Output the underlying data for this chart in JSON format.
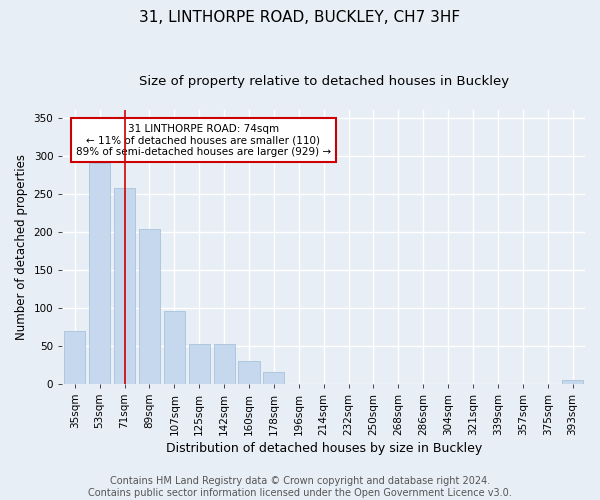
{
  "title1": "31, LINTHORPE ROAD, BUCKLEY, CH7 3HF",
  "title2": "Size of property relative to detached houses in Buckley",
  "xlabel": "Distribution of detached houses by size in Buckley",
  "ylabel": "Number of detached properties",
  "categories": [
    "35sqm",
    "53sqm",
    "71sqm",
    "89sqm",
    "107sqm",
    "125sqm",
    "142sqm",
    "160sqm",
    "178sqm",
    "196sqm",
    "214sqm",
    "232sqm",
    "250sqm",
    "268sqm",
    "286sqm",
    "304sqm",
    "321sqm",
    "339sqm",
    "357sqm",
    "375sqm",
    "393sqm"
  ],
  "values": [
    70,
    290,
    258,
    204,
    96,
    52,
    52,
    30,
    15,
    0,
    0,
    0,
    0,
    0,
    0,
    0,
    0,
    0,
    0,
    0,
    5
  ],
  "bar_color": "#c5d8ed",
  "bar_edge_color": "#a8c4dc",
  "vline_x": 2.0,
  "vline_color": "#cc0000",
  "annotation_text": "31 LINTHORPE ROAD: 74sqm\n← 11% of detached houses are smaller (110)\n89% of semi-detached houses are larger (929) →",
  "annotation_box_color": "#ffffff",
  "annotation_box_edge_color": "#cc0000",
  "ylim": [
    0,
    360
  ],
  "yticks": [
    0,
    50,
    100,
    150,
    200,
    250,
    300,
    350
  ],
  "footnote": "Contains HM Land Registry data © Crown copyright and database right 2024.\nContains public sector information licensed under the Open Government Licence v3.0.",
  "background_color": "#e8eef5",
  "grid_color": "#ffffff",
  "title1_fontsize": 11,
  "title2_fontsize": 9.5,
  "xlabel_fontsize": 9,
  "ylabel_fontsize": 8.5,
  "footnote_fontsize": 7,
  "tick_fontsize": 7.5,
  "annotation_fontsize": 7.5
}
